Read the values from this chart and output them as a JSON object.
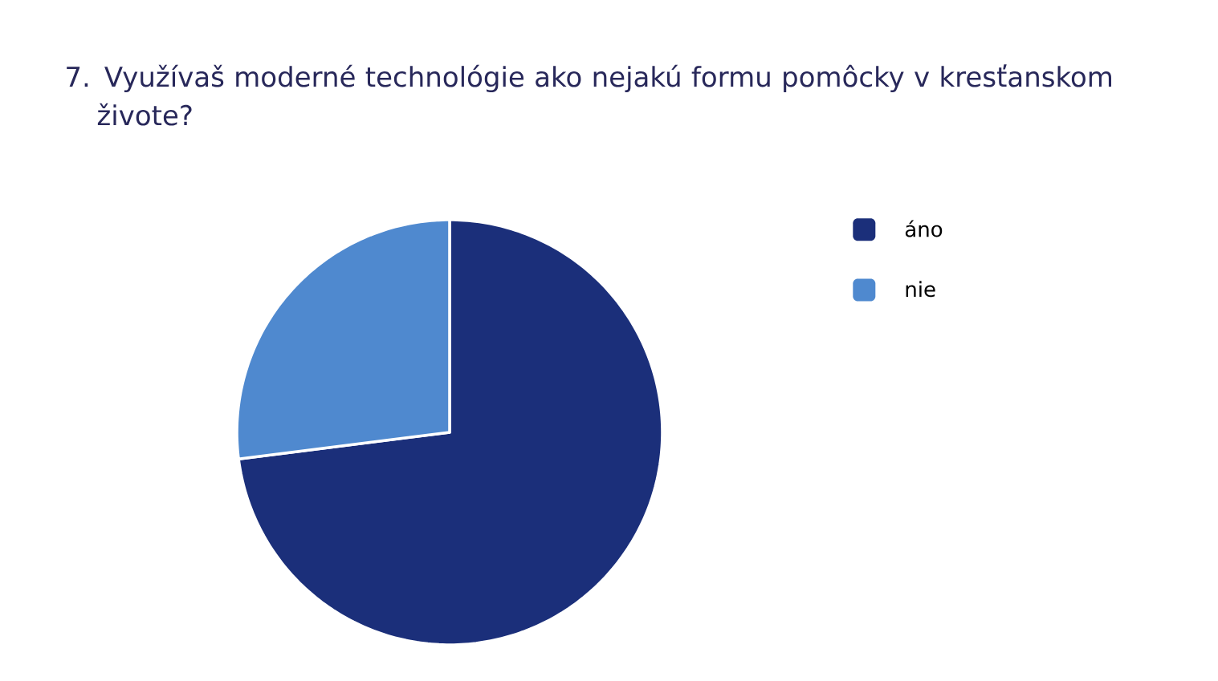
{
  "chart_data": {
    "type": "pie",
    "title": "7. Využívaš moderné technológie ako nejakú formu pomôcky v kresťanskom živote?",
    "categories": [
      "áno",
      "nie"
    ],
    "values": [
      73,
      27
    ],
    "colors": [
      "#1b2f7a",
      "#4f89cf"
    ],
    "legend": "right"
  }
}
